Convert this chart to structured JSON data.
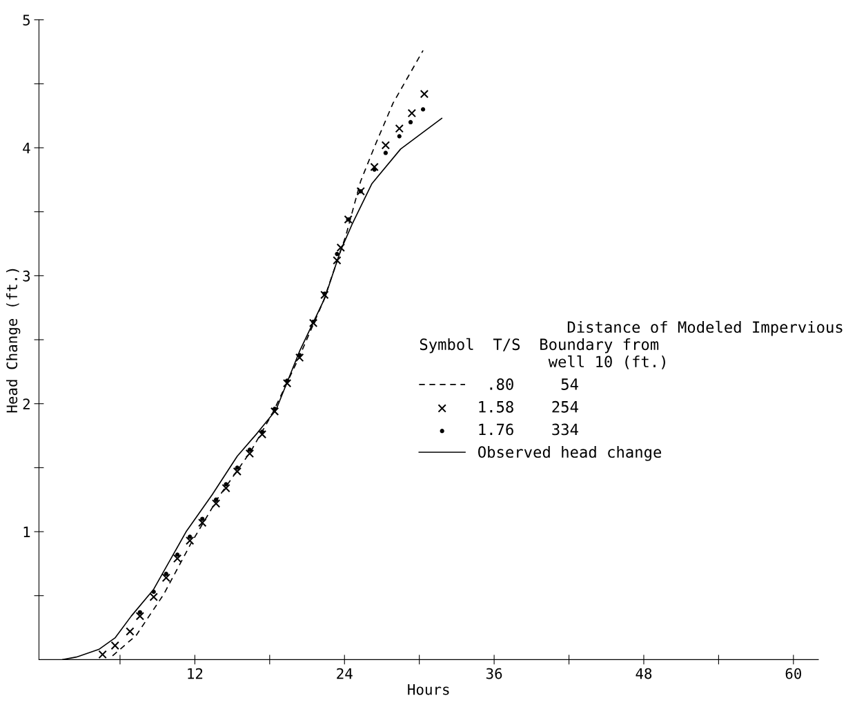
{
  "chart_data": {
    "type": "line",
    "xlabel": "Hours",
    "ylabel": "Head Change (ft.)",
    "legend_title": "                Distance of Modeled Impervious\nSymbol  T/S  Boundary from\n              well 10 (ft.)",
    "xlim": [
      -0.5,
      62
    ],
    "ylim": [
      0,
      5
    ],
    "xticks": [
      {
        "value": 6,
        "label": null
      },
      12,
      {
        "value": 18,
        "label": null
      },
      24,
      {
        "value": 30,
        "label": null
      },
      36,
      {
        "value": 42,
        "label": null
      },
      48,
      {
        "value": 54,
        "label": null
      },
      60
    ],
    "yticks": [
      {
        "value": 0.5,
        "label": null
      },
      1,
      {
        "value": 1.5,
        "label": null
      },
      2,
      {
        "value": 2.5,
        "label": null
      },
      3,
      {
        "value": 3.5,
        "label": null
      },
      4,
      {
        "value": 4.5,
        "label": null
      },
      5
    ],
    "legend": "right",
    "grid": false,
    "series": [
      {
        "name": " .80     54",
        "color": "#000000",
        "line_style": "dashed",
        "marker": "none",
        "x": [
          5.4,
          7.3,
          9.5,
          11.7,
          13.9,
          16.5,
          18.2,
          20.3,
          22.3,
          24.1,
          25.3,
          26.5,
          27.9,
          30.3
        ],
        "values": [
          0.03,
          0.19,
          0.51,
          0.91,
          1.27,
          1.63,
          1.92,
          2.35,
          2.8,
          3.31,
          3.74,
          4.03,
          4.35,
          4.76
        ]
      },
      {
        "name": "1.58    254",
        "color": "#000000",
        "type": "scatter",
        "marker": "cross",
        "x": [
          4.6,
          5.6,
          6.8,
          7.6,
          8.7,
          9.7,
          10.6,
          11.6,
          12.6,
          13.7,
          14.5,
          15.4,
          16.4,
          17.4,
          18.4,
          19.4,
          20.4,
          21.5,
          22.4,
          23.4,
          23.7,
          24.3,
          25.3,
          26.4,
          27.3,
          28.4,
          29.4,
          30.4
        ],
        "values": [
          0.04,
          0.11,
          0.22,
          0.34,
          0.49,
          0.64,
          0.79,
          0.93,
          1.07,
          1.22,
          1.34,
          1.47,
          1.61,
          1.76,
          1.94,
          2.16,
          2.36,
          2.63,
          2.85,
          3.12,
          3.22,
          3.44,
          3.66,
          3.85,
          4.02,
          4.15,
          4.27,
          4.42
        ]
      },
      {
        "name": "1.76    334",
        "color": "#000000",
        "type": "scatter",
        "marker": "circle",
        "x": [
          7.6,
          8.7,
          9.7,
          10.6,
          11.6,
          12.6,
          13.7,
          14.5,
          15.4,
          16.4,
          17.4,
          18.4,
          19.4,
          20.4,
          21.5,
          22.4,
          23.4,
          24.3,
          25.3,
          26.4,
          27.3,
          28.4,
          29.3,
          30.3
        ],
        "values": [
          0.37,
          0.53,
          0.67,
          0.82,
          0.96,
          1.1,
          1.25,
          1.37,
          1.5,
          1.64,
          1.78,
          1.96,
          2.18,
          2.38,
          2.64,
          2.86,
          3.17,
          3.44,
          3.66,
          3.83,
          3.96,
          4.09,
          4.2,
          4.3
        ]
      },
      {
        "name": "Observed head change",
        "color": "#000000",
        "line_style": "solid",
        "marker": "none",
        "x": [
          1.4,
          2.5,
          4.3,
          5.6,
          6.9,
          8.7,
          11.3,
          13.4,
          15.4,
          17.0,
          18.5,
          20.4,
          22.4,
          23.7,
          24.6,
          26.2,
          28.5,
          31.8
        ],
        "values": [
          0,
          0.02,
          0.08,
          0.17,
          0.34,
          0.55,
          1.0,
          1.29,
          1.59,
          1.77,
          1.95,
          2.41,
          2.82,
          3.2,
          3.4,
          3.72,
          3.99,
          4.23
        ]
      }
    ]
  }
}
